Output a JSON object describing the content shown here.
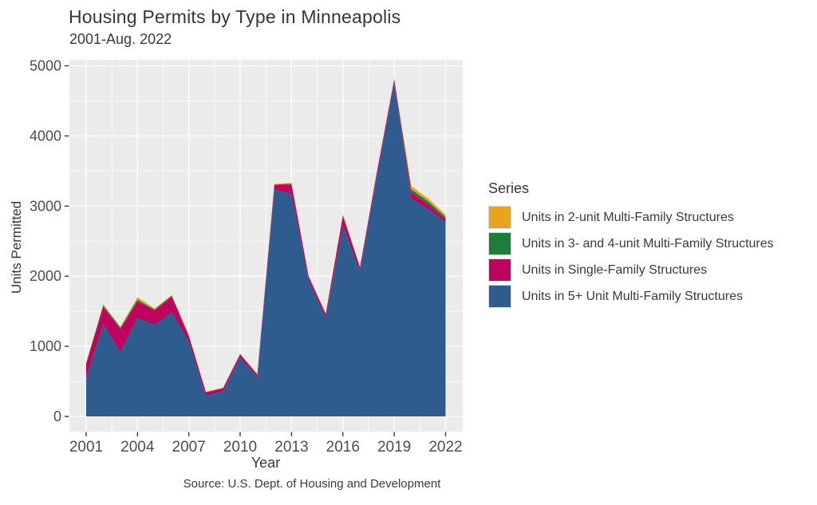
{
  "chart_data": {
    "type": "area",
    "stacked": true,
    "title": "Housing Permits by Type in Minneapolis",
    "subtitle": "2001-Aug. 2022",
    "xlabel": "Year",
    "ylabel": "Units Permitted",
    "caption": "Source: U.S. Dept. of Housing and Development",
    "legend_title": "Series",
    "legend_position": "right",
    "grid": true,
    "panel_color": "#EBEBEB",
    "grid_color": "#FFFFFF",
    "axis_text_color": "#4D4D4D",
    "tick_color": "#333333",
    "ylim": [
      0,
      5000
    ],
    "yticks": [
      0,
      1000,
      2000,
      3000,
      4000,
      5000
    ],
    "xticks": [
      2001,
      2004,
      2007,
      2010,
      2013,
      2016,
      2019,
      2022
    ],
    "x": [
      2001,
      2002,
      2003,
      2004,
      2005,
      2006,
      2007,
      2008,
      2009,
      2010,
      2011,
      2012,
      2013,
      2014,
      2015,
      2016,
      2017,
      2018,
      2019,
      2020,
      2021,
      2022
    ],
    "series": [
      {
        "name": "Units in 5+ Unit Multi-Family Structures",
        "color": "#2F5C8E",
        "values": [
          550,
          1310,
          915,
          1400,
          1300,
          1480,
          1065,
          290,
          355,
          840,
          555,
          3230,
          3170,
          1940,
          1410,
          2720,
          2070,
          3440,
          4760,
          3105,
          2945,
          2770
        ]
      },
      {
        "name": "Units in Single-Family Structures",
        "color": "#BF0460",
        "values": [
          200,
          250,
          330,
          240,
          210,
          230,
          80,
          50,
          45,
          45,
          40,
          70,
          140,
          55,
          50,
          140,
          55,
          55,
          45,
          90,
          75,
          45
        ]
      },
      {
        "name": "Units in 3- and 4-unit Multi-Family Structures",
        "color": "#1E7D3B",
        "values": [
          10,
          25,
          20,
          25,
          15,
          12,
          8,
          8,
          5,
          5,
          5,
          8,
          10,
          5,
          5,
          10,
          5,
          5,
          5,
          45,
          45,
          30
        ]
      },
      {
        "name": "Units in 2-unit Multi-Family Structures",
        "color": "#E9A41F",
        "values": [
          10,
          15,
          15,
          35,
          15,
          10,
          8,
          5,
          5,
          5,
          5,
          8,
          10,
          5,
          5,
          10,
          5,
          5,
          10,
          45,
          40,
          30
        ]
      }
    ]
  }
}
